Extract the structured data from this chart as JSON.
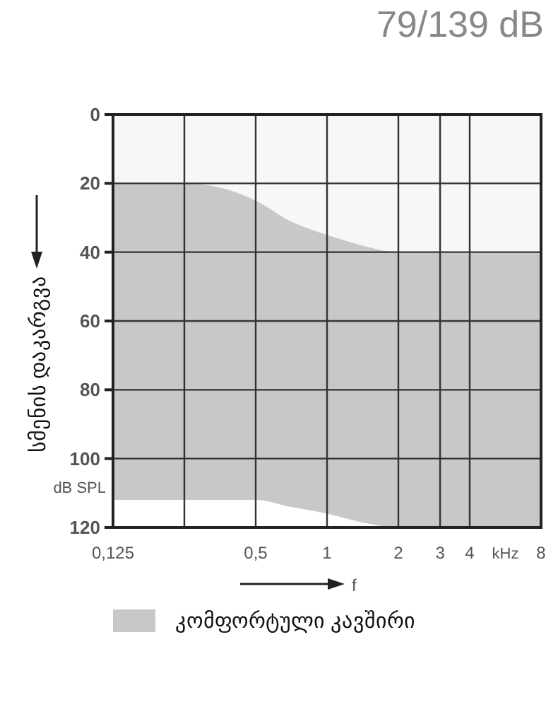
{
  "chart_data": {
    "type": "area",
    "title": "79/139 dB",
    "xlabel": "f",
    "ylabel": "სმენის დაკარგვა",
    "log": "x",
    "x": [
      0.125,
      0.25,
      0.5,
      0.7,
      1,
      1.4,
      2,
      3,
      4,
      8
    ],
    "stacked": true,
    "series": [
      {
        "color": "#f7f7f7",
        "values": [
          20,
          20,
          25,
          31,
          35,
          38,
          40,
          40,
          40,
          40
        ]
      },
      {
        "name": "კომფორტული კავშირი",
        "color": "#c8c8ca",
        "values": [
          92,
          92,
          87,
          83,
          81,
          80.5,
          80,
          80,
          80,
          80
        ]
      }
    ],
    "xlim": [
      0.125,
      8
    ],
    "xticks": [
      {
        "value": 0.125,
        "label": "0,125"
      },
      {
        "value": 0.25,
        "label": null
      },
      {
        "value": 0.5,
        "label": "0,5"
      },
      1,
      2,
      3,
      4,
      8
    ],
    "ylim": [
      120,
      0
    ],
    "yticks": [
      0,
      20,
      40,
      60,
      80,
      100,
      120
    ],
    "annotations": [
      "kHz",
      "dB SPL"
    ],
    "grid": true,
    "legend": "bottom"
  }
}
